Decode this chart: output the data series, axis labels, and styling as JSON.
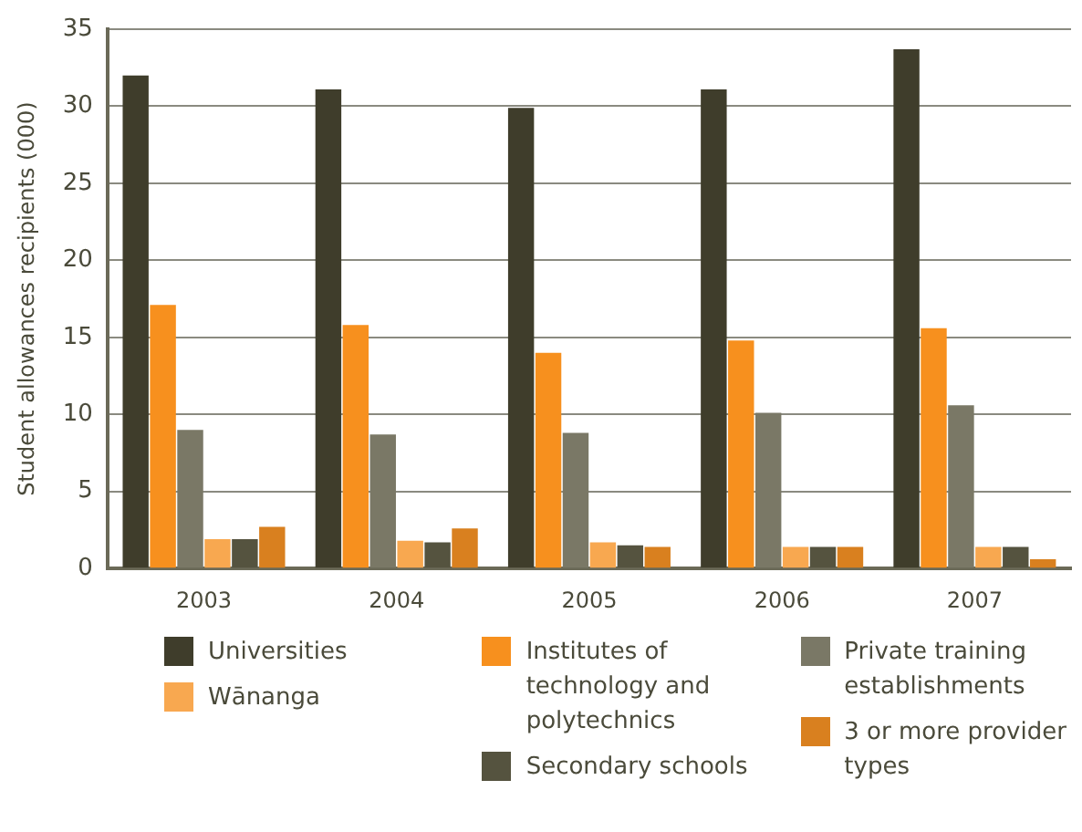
{
  "chart_data": {
    "type": "bar",
    "ylabel": "Student allowances recipients (000)",
    "categories": [
      "2003",
      "2004",
      "2005",
      "2006",
      "2007"
    ],
    "series": [
      {
        "name": "Universities",
        "color": "#3f3d2b",
        "values": [
          32.0,
          31.1,
          29.9,
          31.1,
          33.7
        ]
      },
      {
        "name": "Institutes of technology and polytechnics",
        "color": "#f7901e",
        "values": [
          17.1,
          15.8,
          14.0,
          14.8,
          15.6
        ]
      },
      {
        "name": "Private training establishments",
        "color": "#7a7866",
        "values": [
          9.0,
          8.7,
          8.8,
          10.1,
          10.6
        ]
      },
      {
        "name": "Wānanga",
        "color": "#f8a850",
        "values": [
          1.9,
          1.8,
          1.7,
          1.4,
          1.4
        ]
      },
      {
        "name": "Secondary schools",
        "color": "#55533f",
        "values": [
          1.9,
          1.7,
          1.5,
          1.4,
          1.4
        ]
      },
      {
        "name": "3 or more provider types",
        "color": "#d9801f",
        "values": [
          2.7,
          2.6,
          1.4,
          1.4,
          0.6
        ]
      }
    ],
    "ylim": [
      0,
      35
    ],
    "yticks": [
      0,
      5,
      10,
      15,
      20,
      25,
      30,
      35
    ],
    "grid": "y",
    "legend": "bottom"
  }
}
